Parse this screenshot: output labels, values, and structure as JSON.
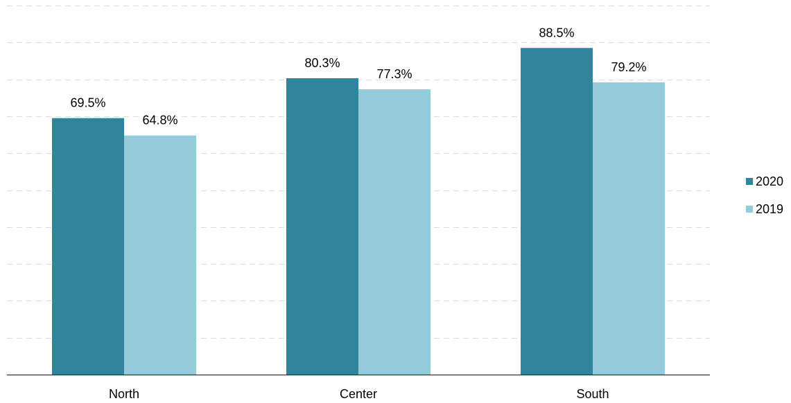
{
  "chart_data": {
    "type": "bar",
    "categories": [
      "North",
      "Center",
      "South"
    ],
    "series": [
      {
        "name": "2020",
        "values": [
          69.5,
          80.3,
          88.5
        ],
        "labels": [
          "69.5%",
          "80.3%",
          "88.5%"
        ],
        "color": "#30849b"
      },
      {
        "name": "2019",
        "values": [
          64.8,
          77.3,
          79.2
        ],
        "labels": [
          "64.8%",
          "77.3%",
          "79.2%"
        ],
        "color": "#96cbdc"
      }
    ],
    "ylim": [
      0,
      100
    ],
    "grid": true,
    "legend": "right",
    "title": "",
    "xlabel": "",
    "ylabel": ""
  }
}
